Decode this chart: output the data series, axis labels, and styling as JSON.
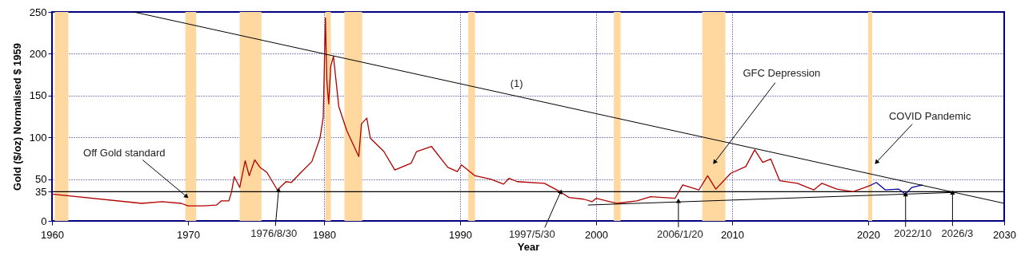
{
  "chart_data": {
    "type": "line",
    "xlabel": "Year",
    "ylabel": "Gold ($/oz) Normalised $ 1959",
    "xlim": [
      1960,
      2030
    ],
    "ylim": [
      0,
      250
    ],
    "xticks": [
      1960,
      1970,
      1980,
      1990,
      2000,
      2010,
      2020,
      2030
    ],
    "yticks": [
      0,
      35,
      50,
      100,
      150,
      200,
      250
    ],
    "grid": true,
    "series": [
      {
        "color": "#b00000",
        "x": [
          1960,
          1966.6,
          1968.1,
          1969.5,
          1970.0,
          1971.1,
          1972.1,
          1972.45,
          1973.0,
          1973.2,
          1973.4,
          1973.8,
          1974.2,
          1974.5,
          1974.9,
          1975.3,
          1975.8,
          1976.57,
          1977.2,
          1977.6,
          1978.3,
          1979.1,
          1979.7,
          1979.94,
          1980.1,
          1980.2,
          1980.34,
          1980.49,
          1980.69,
          1981.08,
          1981.67,
          1982.55,
          1982.75,
          1983.14,
          1983.4,
          1984.4,
          1985.2,
          1986.4,
          1986.8,
          1987.9,
          1989.1,
          1989.8,
          1990.1,
          1991.1,
          1992.25,
          1993.2,
          1993.6,
          1994.2,
          1996.2,
          1997.35,
          1998.0,
          1999.1,
          1999.7,
          2000.0,
          2001.5,
          2003.0,
          2004.0,
          2005.8,
          2006.37,
          2007.55,
          2008.2,
          2008.8,
          2009.9,
          2011.0,
          2011.66,
          2012.25,
          2012.84,
          2013.5,
          2014.8,
          2016.0,
          2016.6,
          2017.7,
          2018.9,
          2020.1
        ],
        "values": [
          32,
          21,
          23,
          21,
          18,
          18,
          19,
          24,
          24,
          35,
          53,
          40,
          72,
          54,
          73,
          64,
          58,
          37,
          47,
          46,
          58,
          71,
          99,
          124,
          243,
          169,
          140,
          185,
          197,
          137,
          108,
          77,
          116,
          123,
          99,
          83,
          61,
          69,
          83,
          89,
          64,
          59,
          67,
          54,
          50,
          44,
          51,
          47,
          45,
          35,
          28,
          26,
          23,
          27,
          21,
          24,
          29,
          27,
          43,
          37,
          54,
          38,
          57,
          65,
          85,
          70,
          74,
          48,
          45,
          37,
          45,
          38,
          35,
          42
        ]
      },
      {
        "color": "#0000a0",
        "x": [
          2020.1,
          2020.6,
          2021.27,
          2022.25,
          2022.74,
          2023.2,
          2024.0
        ],
        "values": [
          42,
          46,
          37,
          38,
          32,
          40,
          43
        ]
      },
      {
        "type": "line",
        "name": "(1)",
        "color": "#000000",
        "x": [
          1966,
          2030
        ],
        "values": [
          250,
          21
        ]
      },
      {
        "type": "line",
        "color": "#000000",
        "x": [
          1999.4,
          2026.2
        ],
        "values": [
          19,
          34
        ]
      }
    ],
    "bands": [
      {
        "axis": "x",
        "from": 1960.2,
        "to": 1961.2,
        "color": "#ffd8a0"
      },
      {
        "axis": "x",
        "from": 1969.8,
        "to": 1970.6,
        "color": "#ffd8a0"
      },
      {
        "axis": "x",
        "from": 1973.8,
        "to": 1975.4,
        "color": "#ffd8a0"
      },
      {
        "axis": "x",
        "from": 1980.1,
        "to": 1980.5,
        "color": "#ffd8a0"
      },
      {
        "axis": "x",
        "from": 1981.5,
        "to": 1982.8,
        "color": "#ffd8a0"
      },
      {
        "axis": "x",
        "from": 1990.6,
        "to": 1991.1,
        "color": "#ffd8a0"
      },
      {
        "axis": "x",
        "from": 2001.3,
        "to": 2001.8,
        "color": "#ffd8a0"
      },
      {
        "axis": "x",
        "from": 2007.8,
        "to": 2009.5,
        "color": "#ffd8a0"
      },
      {
        "axis": "x",
        "from": 2020.0,
        "to": 2020.3,
        "color": "#ffd8a0"
      }
    ],
    "ref_lines": [
      {
        "axis": "y",
        "value": 35,
        "color": "#000000"
      }
    ],
    "annotations": [
      {
        "text": "Off Gold standard",
        "x": 1969.9,
        "y": 29
      },
      {
        "text": "GFC Depression",
        "x": 2008.7,
        "y": 70
      },
      {
        "text": "COVID Pandemic",
        "x": 2020.6,
        "y": 70
      },
      {
        "text": "1976/8/30",
        "x": 1976.66,
        "y": 37
      },
      {
        "text": "1997/5/30",
        "x": 1997.4,
        "y": 35
      },
      {
        "text": "2006/1/20",
        "x": 2006.05,
        "y": 24
      },
      {
        "text": "2022/10",
        "x": 2022.75,
        "y": 32
      },
      {
        "text": "2026/3",
        "x": 2026.2,
        "y": 34
      }
    ]
  }
}
